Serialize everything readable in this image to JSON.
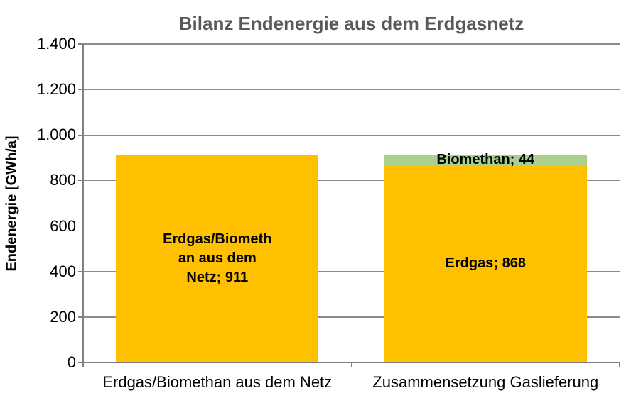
{
  "chart_data": {
    "type": "bar",
    "stacked": true,
    "title": "Bilanz Endenergie aus dem Erdgasnetz",
    "ylabel": "Endenergie [GWh/a]",
    "xlabel": "",
    "ylim": [
      0,
      1400
    ],
    "grid": true,
    "legend_position": "none",
    "yticks": [
      {
        "value": 0,
        "label": "0"
      },
      {
        "value": 200,
        "label": "200"
      },
      {
        "value": 400,
        "label": "400"
      },
      {
        "value": 600,
        "label": "600"
      },
      {
        "value": 800,
        "label": "800"
      },
      {
        "value": 1000,
        "label": "1.000"
      },
      {
        "value": 1200,
        "label": "1.200"
      },
      {
        "value": 1400,
        "label": "1.400"
      }
    ],
    "categories": [
      "Erdgas/Biomethan aus dem Netz",
      "Zusammensetzung Gaslieferung"
    ],
    "bars": [
      {
        "category": "Erdgas/Biomethan aus dem Netz",
        "segments": [
          {
            "name": "Erdgas/Biomethan aus dem Netz",
            "value": 911,
            "color": "#FFC000",
            "label": "Erdgas/Biomethan aus dem Netz; 911",
            "label_lines": [
              "Erdgas/Biometh",
              "an aus dem",
              "Netz; 911"
            ]
          }
        ]
      },
      {
        "category": "Zusammensetzung Gaslieferung",
        "segments": [
          {
            "name": "Erdgas",
            "value": 868,
            "color": "#FFC000",
            "label": "Erdgas; 868",
            "label_lines": [
              "Erdgas; 868"
            ]
          },
          {
            "name": "Biomethan",
            "value": 44,
            "color": "#A9D08E",
            "label": "Biomethan; 44",
            "label_lines": [
              "Biomethan; 44"
            ]
          }
        ]
      }
    ]
  },
  "colors": {
    "title": "#595959",
    "axis": "#808080",
    "grid": "#8A8A8A",
    "label_text": "#000000",
    "background": "#FFFFFF",
    "bar_yellow": "#FFC000",
    "bar_green": "#A9D08E"
  }
}
